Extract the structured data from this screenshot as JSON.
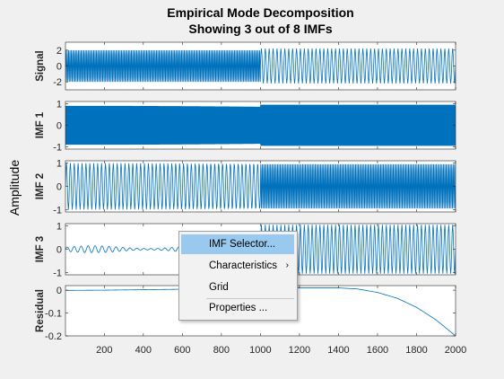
{
  "window": {
    "title_line1": "Empirical Mode Decomposition",
    "title_line2": "Showing 3 out of 8 IMFs",
    "ylabel": "Amplitude"
  },
  "colors": {
    "line": "#0072bd",
    "axes_bg": "#ffffff",
    "figure_bg": "#f0f0f0",
    "menu_highlight": "#99c9ef"
  },
  "context_menu": {
    "items": [
      {
        "label": "IMF Selector...",
        "highlighted": true
      },
      {
        "label": "Characteristics",
        "has_submenu": true
      },
      {
        "label": "Grid"
      },
      {
        "label": "Properties ..."
      }
    ]
  },
  "chart_data": [
    {
      "type": "line",
      "ylabel": "Signal",
      "ylim": [
        -3,
        3
      ],
      "yticks": [
        2,
        0,
        -2
      ],
      "ytick_labels": [
        "2",
        "0",
        "-2"
      ],
      "x": [
        1,
        2000
      ],
      "series": [
        {
          "description_values": {
            "segment1": {
              "x_range": [
                1,
                1000
              ],
              "amplitude": 2.0,
              "cycles_per_1000": 140
            },
            "segment2": {
              "x_range": [
                1000,
                2000
              ],
              "amplitude": 2.2,
              "cycles_per_1000": 50
            }
          }
        }
      ]
    },
    {
      "type": "line",
      "ylabel": "IMF 1",
      "ylim": [
        -1.1,
        1.1
      ],
      "yticks": [
        1,
        0,
        -1
      ],
      "ytick_labels": [
        "1",
        "0",
        "-1"
      ],
      "series": [
        {
          "description_values": {
            "segment1": {
              "x_range": [
                1,
                1000
              ],
              "amplitude": 0.9,
              "cycles_per_1000": 450
            },
            "segment2": {
              "x_range": [
                1000,
                2000
              ],
              "amplitude": 0.95,
              "cycles_per_1000": 450
            }
          }
        }
      ]
    },
    {
      "type": "line",
      "ylabel": "IMF 2",
      "ylim": [
        -1.1,
        1.1
      ],
      "yticks": [
        1,
        0,
        -1
      ],
      "ytick_labels": [
        "1",
        "0",
        "-1"
      ],
      "series": [
        {
          "description_values": {
            "segment1": {
              "x_range": [
                1,
                1000
              ],
              "amplitude": 1.0,
              "cycles_per_1000": 50
            },
            "segment2": {
              "x_range": [
                1000,
                2000
              ],
              "amplitude": 0.95,
              "cycles_per_1000": 140
            }
          }
        }
      ]
    },
    {
      "type": "line",
      "ylabel": "IMF 3",
      "ylim": [
        -1.1,
        1.1
      ],
      "yticks": [
        1,
        0,
        -1
      ],
      "ytick_labels": [
        "1",
        "0",
        "-1"
      ],
      "series": [
        {
          "description_values": {
            "segment1": {
              "x_range": [
                1,
                1000
              ],
              "amplitude": 0.15,
              "cycles_per_1000": 28
            },
            "segment2": {
              "x_range": [
                1000,
                2000
              ],
              "amplitude": 1.05,
              "cycles_per_1000": 50
            }
          }
        }
      ]
    },
    {
      "type": "line",
      "ylabel": "Residual",
      "ylim": [
        -0.2,
        0.02
      ],
      "yticks": [
        0,
        -0.1,
        -0.2
      ],
      "ytick_labels": [
        "0",
        "-0.1",
        "-0.2"
      ],
      "xticks": [
        200,
        400,
        600,
        800,
        1000,
        1200,
        1400,
        1600,
        1800,
        2000
      ],
      "xtick_labels": [
        "200",
        "400",
        "600",
        "800",
        "1000",
        "1200",
        "1400",
        "1600",
        "1800",
        "2000"
      ],
      "series": [
        {
          "x": [
            1,
            200,
            400,
            600,
            800,
            1000,
            1200,
            1400,
            1500,
            1600,
            1700,
            1800,
            1900,
            2000
          ],
          "y": [
            -0.001,
            0.0,
            0.002,
            0.004,
            0.006,
            0.008,
            0.01,
            0.01,
            0.005,
            -0.01,
            -0.035,
            -0.075,
            -0.13,
            -0.2
          ]
        }
      ]
    }
  ]
}
